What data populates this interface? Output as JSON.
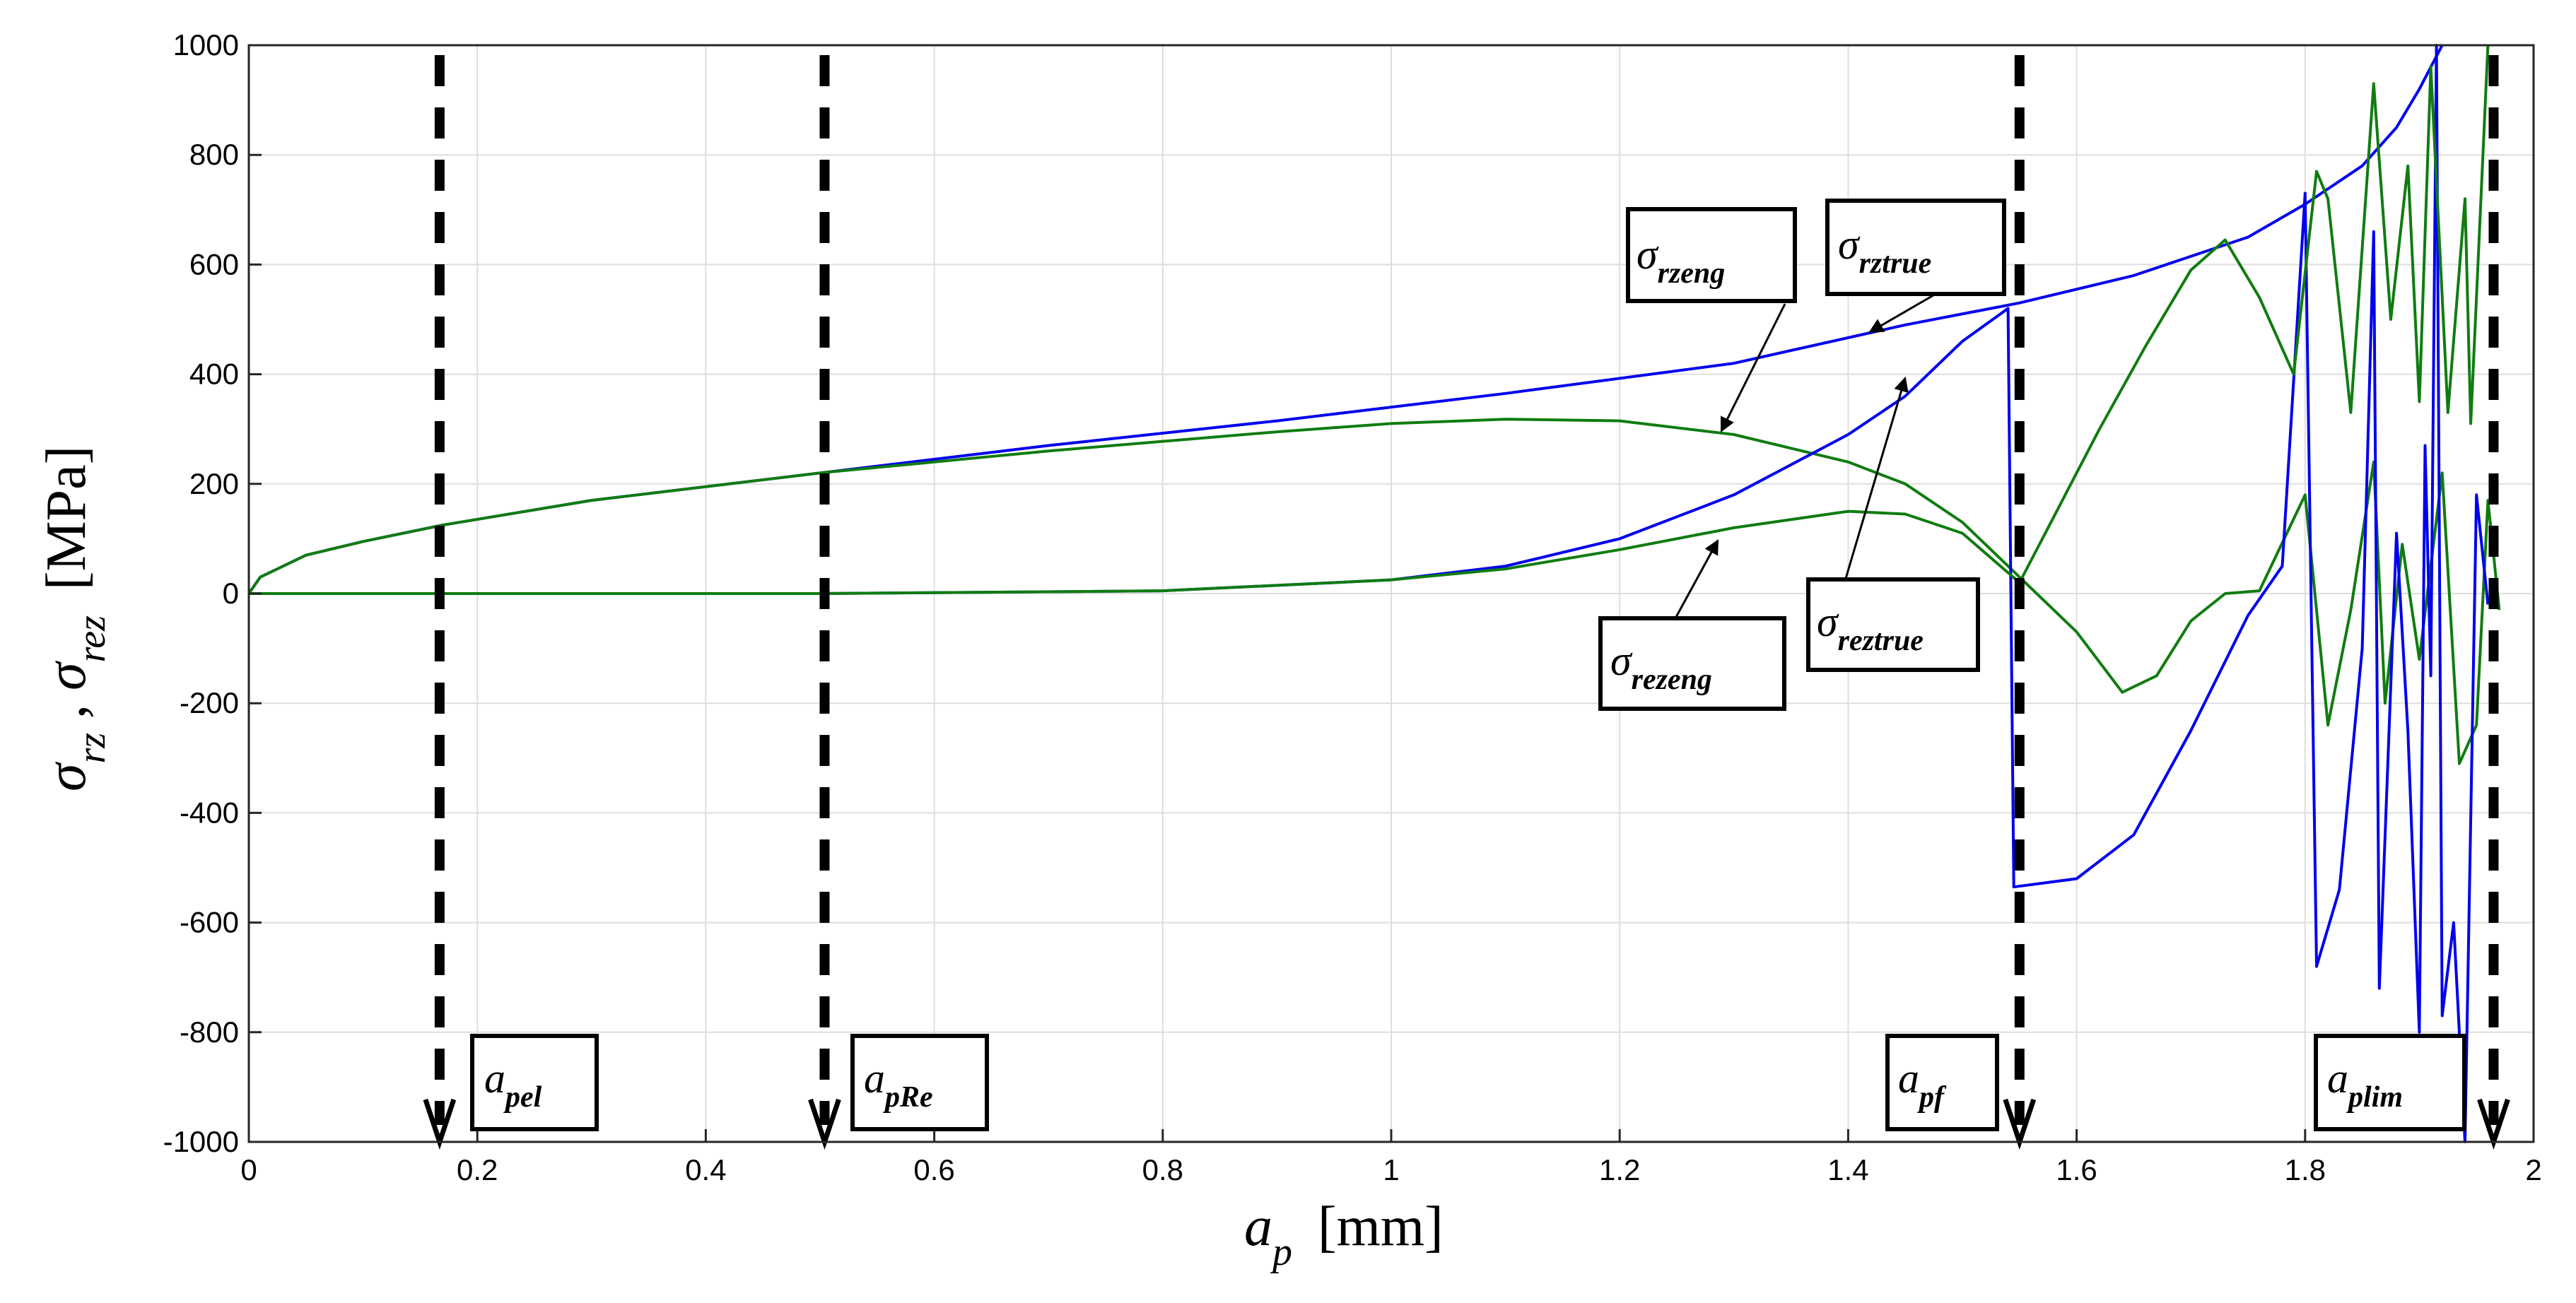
{
  "chart_data": {
    "type": "line",
    "title": "",
    "xlabel": {
      "symbol": "a",
      "sub": "p",
      "unit": "[mm]"
    },
    "ylabel": {
      "s1": "σ",
      "sub1": "rz",
      "sep": " , ",
      "s2": "σ",
      "sub2": "rez",
      "unit": "[MPa]"
    },
    "xlim": [
      0,
      2
    ],
    "ylim": [
      -1000,
      1000
    ],
    "x_ticks": [
      0,
      0.2,
      0.4,
      0.6,
      0.8,
      1,
      1.2,
      1.4,
      1.6,
      1.8,
      2
    ],
    "x_tick_labels": [
      "0",
      "0.2",
      "0.4",
      "0.6",
      "0.8",
      "1",
      "1.2",
      "1.4",
      "1.6",
      "1.8",
      "2"
    ],
    "y_ticks": [
      -1000,
      -800,
      -600,
      -400,
      -200,
      0,
      200,
      400,
      600,
      800,
      1000
    ],
    "y_tick_labels": [
      "-1000",
      "-800",
      "-600",
      "-400",
      "-200",
      "0",
      "200",
      "400",
      "600",
      "800",
      "1000"
    ],
    "grid": true,
    "colors": {
      "blue": "#0000ee",
      "green": "#107c10",
      "marker": "#000000"
    },
    "series": [
      {
        "name": "σ rztrue",
        "color": "#0000ee",
        "points": [
          [
            0,
            0
          ],
          [
            0.01,
            30
          ],
          [
            0.05,
            70
          ],
          [
            0.1,
            95
          ],
          [
            0.17,
            125
          ],
          [
            0.3,
            170
          ],
          [
            0.5,
            220
          ],
          [
            0.7,
            270
          ],
          [
            0.9,
            315
          ],
          [
            1.1,
            365
          ],
          [
            1.3,
            420
          ],
          [
            1.45,
            490
          ],
          [
            1.55,
            530
          ],
          [
            1.65,
            580
          ],
          [
            1.75,
            650
          ],
          [
            1.8,
            710
          ],
          [
            1.85,
            780
          ],
          [
            1.88,
            850
          ],
          [
            1.9,
            920
          ],
          [
            1.92,
            1000
          ]
        ]
      },
      {
        "name": "σ rzeng",
        "color": "#107c10",
        "points": [
          [
            0,
            0
          ],
          [
            0.01,
            30
          ],
          [
            0.05,
            70
          ],
          [
            0.1,
            95
          ],
          [
            0.17,
            125
          ],
          [
            0.3,
            170
          ],
          [
            0.5,
            220
          ],
          [
            0.7,
            260
          ],
          [
            0.9,
            295
          ],
          [
            1.0,
            310
          ],
          [
            1.1,
            318
          ],
          [
            1.2,
            315
          ],
          [
            1.3,
            290
          ],
          [
            1.4,
            240
          ],
          [
            1.45,
            200
          ],
          [
            1.5,
            130
          ],
          [
            1.55,
            30
          ],
          [
            1.6,
            -70
          ],
          [
            1.64,
            -180
          ],
          [
            1.67,
            -150
          ],
          [
            1.7,
            -50
          ],
          [
            1.73,
            0
          ],
          [
            1.76,
            5
          ],
          [
            1.8,
            180
          ],
          [
            1.82,
            -240
          ],
          [
            1.84,
            -30
          ],
          [
            1.86,
            240
          ],
          [
            1.87,
            -200
          ],
          [
            1.885,
            90
          ],
          [
            1.9,
            -120
          ],
          [
            1.92,
            220
          ],
          [
            1.935,
            -310
          ],
          [
            1.95,
            -240
          ],
          [
            1.96,
            170
          ],
          [
            1.97,
            -30
          ]
        ]
      },
      {
        "name": "σ reztrue",
        "color": "#0000ee",
        "points": [
          [
            0,
            0
          ],
          [
            0.5,
            0
          ],
          [
            0.8,
            5
          ],
          [
            1.0,
            25
          ],
          [
            1.1,
            50
          ],
          [
            1.2,
            100
          ],
          [
            1.3,
            180
          ],
          [
            1.4,
            290
          ],
          [
            1.45,
            360
          ],
          [
            1.5,
            460
          ],
          [
            1.54,
            520
          ],
          [
            1.545,
            -535
          ],
          [
            1.6,
            -520
          ],
          [
            1.65,
            -440
          ],
          [
            1.7,
            -250
          ],
          [
            1.75,
            -40
          ],
          [
            1.78,
            50
          ],
          [
            1.8,
            730
          ],
          [
            1.81,
            -680
          ],
          [
            1.83,
            -540
          ],
          [
            1.85,
            -100
          ],
          [
            1.86,
            660
          ],
          [
            1.865,
            -720
          ],
          [
            1.88,
            110
          ],
          [
            1.89,
            -250
          ],
          [
            1.9,
            -800
          ],
          [
            1.905,
            270
          ],
          [
            1.91,
            -150
          ],
          [
            1.915,
            1000
          ],
          [
            1.92,
            -770
          ],
          [
            1.93,
            -600
          ],
          [
            1.94,
            -1000
          ],
          [
            1.95,
            180
          ],
          [
            1.96,
            -20
          ]
        ]
      },
      {
        "name": "σ rezeng",
        "color": "#107c10",
        "points": [
          [
            0,
            0
          ],
          [
            0.5,
            0
          ],
          [
            0.8,
            5
          ],
          [
            1.0,
            25
          ],
          [
            1.1,
            45
          ],
          [
            1.2,
            80
          ],
          [
            1.3,
            120
          ],
          [
            1.4,
            150
          ],
          [
            1.45,
            145
          ],
          [
            1.5,
            110
          ],
          [
            1.55,
            20
          ],
          [
            1.58,
            140
          ],
          [
            1.62,
            300
          ],
          [
            1.66,
            450
          ],
          [
            1.7,
            590
          ],
          [
            1.73,
            645
          ],
          [
            1.76,
            540
          ],
          [
            1.79,
            400
          ],
          [
            1.81,
            770
          ],
          [
            1.82,
            720
          ],
          [
            1.84,
            330
          ],
          [
            1.86,
            930
          ],
          [
            1.875,
            500
          ],
          [
            1.89,
            780
          ],
          [
            1.9,
            350
          ],
          [
            1.91,
            960
          ],
          [
            1.925,
            330
          ],
          [
            1.94,
            720
          ],
          [
            1.945,
            310
          ],
          [
            1.96,
            1000
          ]
        ]
      }
    ],
    "markers": [
      {
        "name": "marker-apel",
        "x": 0.167,
        "label_main": "a",
        "label_sub": "pel"
      },
      {
        "name": "marker-apRe",
        "x": 0.504,
        "label_main": "a",
        "label_sub": "pRe"
      },
      {
        "name": "marker-apf",
        "x": 1.55,
        "label_main": "a",
        "label_sub": "pf"
      },
      {
        "name": "marker-aplim",
        "x": 1.965,
        "label_main": "a",
        "label_sub": "plim"
      }
    ],
    "annotations": [
      {
        "name": "annot-rzeng",
        "main": "σ",
        "sub": "rzeng"
      },
      {
        "name": "annot-rztrue",
        "main": "σ",
        "sub": "rztrue"
      },
      {
        "name": "annot-rezeng",
        "main": "σ",
        "sub": "rezeng"
      },
      {
        "name": "annot-reztrue",
        "main": "σ",
        "sub": "reztrue"
      }
    ]
  }
}
